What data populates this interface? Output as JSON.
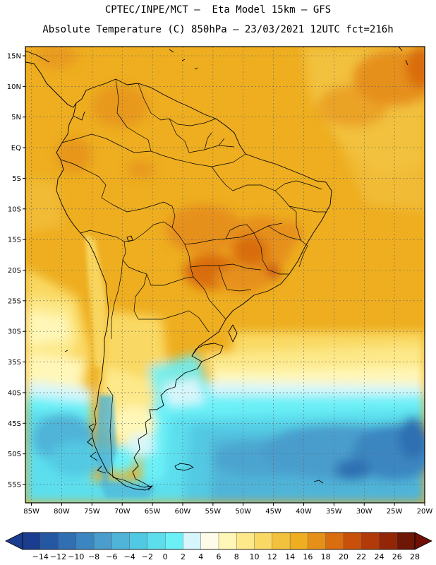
{
  "title": {
    "line1": "CPTEC/INPE/MCT –  Eta Model 15km – GFS",
    "line2": "Absolute Temperature (C) 850hPa – 23/03/2021 12UTC fct=216h"
  },
  "map": {
    "lat_labels": [
      "15N",
      "10N",
      "5N",
      "EQ",
      "5S",
      "10S",
      "15S",
      "20S",
      "25S",
      "30S",
      "35S",
      "40S",
      "45S",
      "50S",
      "55S"
    ],
    "lon_labels": [
      "85W",
      "80W",
      "75W",
      "70W",
      "65W",
      "60W",
      "55W",
      "50W",
      "45W",
      "40W",
      "35W",
      "30W",
      "25W",
      "20W"
    ],
    "lat_values": [
      15,
      10,
      5,
      0,
      -5,
      -10,
      -15,
      -20,
      -25,
      -30,
      -35,
      -40,
      -45,
      -50,
      -55
    ],
    "lon_values": [
      -85,
      -80,
      -75,
      -70,
      -65,
      -60,
      -55,
      -50,
      -45,
      -40,
      -35,
      -30,
      -25,
      -20
    ],
    "lat_range": [
      -58,
      16.5
    ],
    "lon_range": [
      -86,
      -20
    ]
  },
  "colorbar": {
    "labels": [
      "-14",
      "-12",
      "-10",
      "-8",
      "-6",
      "-4",
      "-2",
      "0",
      "2",
      "4",
      "6",
      "8",
      "10",
      "12",
      "14",
      "16",
      "18",
      "20",
      "22",
      "24",
      "26",
      "28"
    ],
    "colors": [
      "#1b3d8f",
      "#2458a3",
      "#2f6fb2",
      "#3b86c1",
      "#4a9dcc",
      "#4fb4d8",
      "#52c9e3",
      "#5cdeed",
      "#6cf0f7",
      "#d7f6fb",
      "#fffbe8",
      "#fff7b8",
      "#fde98a",
      "#f9d964",
      "#f2c13e",
      "#eeae20",
      "#e6901a",
      "#d96d10",
      "#c9500a",
      "#b23a08",
      "#922607",
      "#6e1706"
    ],
    "tri_low": "#1b3d8f",
    "tri_high": "#6e0f08"
  }
}
